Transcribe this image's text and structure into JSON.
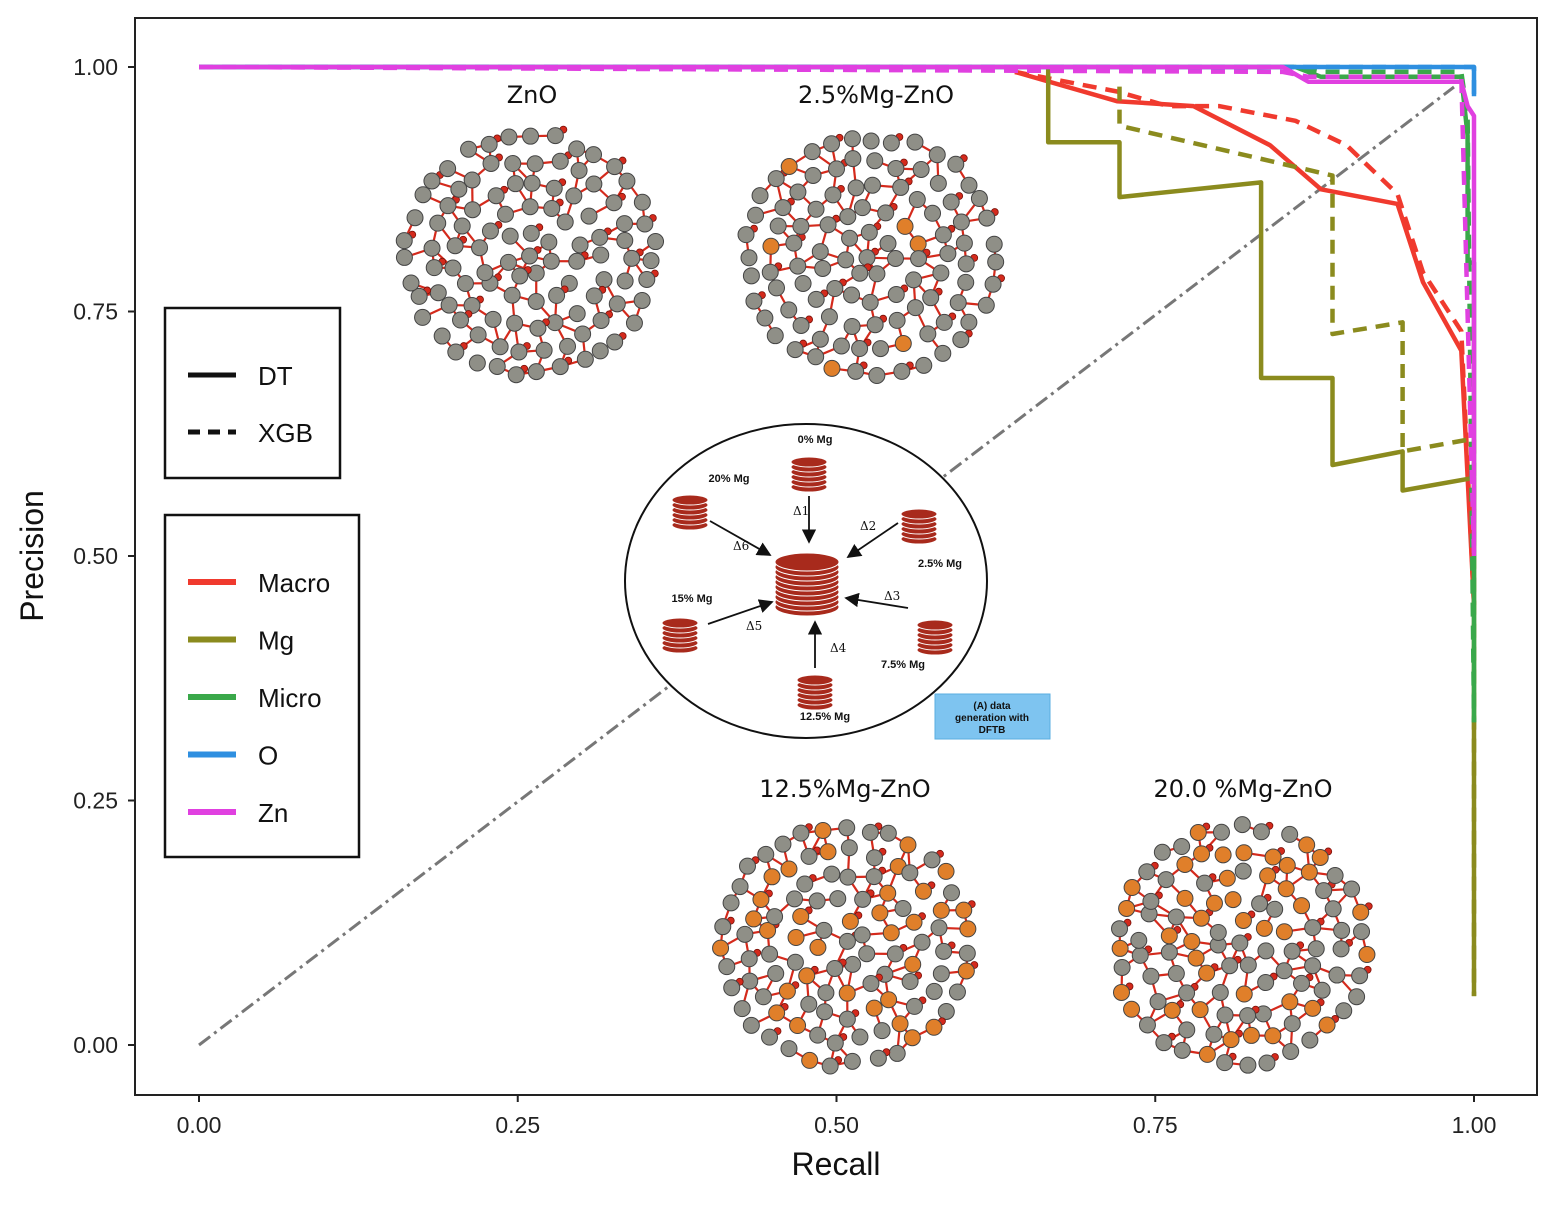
{
  "chart_data": {
    "type": "line",
    "xlabel": "Recall",
    "ylabel": "Precision",
    "xlim": [
      0,
      1
    ],
    "ylim": [
      0,
      1
    ],
    "x_ticks": [
      "0.00",
      "0.25",
      "0.50",
      "0.75",
      "1.00"
    ],
    "y_ticks": [
      "0.00",
      "0.25",
      "0.50",
      "0.75",
      "1.00"
    ],
    "grid": false,
    "legend_models": [
      {
        "label": "DT",
        "dash": "solid"
      },
      {
        "label": "XGB",
        "dash": "dashed"
      }
    ],
    "legend_classes": [
      {
        "label": "Macro",
        "color": "#f03a2e"
      },
      {
        "label": "Mg",
        "color": "#8b8b1e"
      },
      {
        "label": "Micro",
        "color": "#3aa84a"
      },
      {
        "label": "O",
        "color": "#2e8fe0"
      },
      {
        "label": "Zn",
        "color": "#e040e0"
      }
    ],
    "reference_line": {
      "x": [
        0,
        1
      ],
      "y": [
        0,
        1
      ],
      "color": "#777777",
      "style": "dash-dot"
    },
    "series": [
      {
        "model": "DT",
        "class": "Macro",
        "color": "#f03a2e",
        "x": [
          0.64,
          0.72,
          0.78,
          0.84,
          0.88,
          0.94,
          0.96,
          0.99,
          1.0
        ],
        "y": [
          0.995,
          0.965,
          0.96,
          0.92,
          0.875,
          0.86,
          0.78,
          0.71,
          0.45
        ]
      },
      {
        "model": "XGB",
        "class": "Macro",
        "color": "#f03a2e",
        "x": [
          0.64,
          0.72,
          0.76,
          0.8,
          0.86,
          0.9,
          0.94,
          0.96,
          0.99,
          1.0
        ],
        "y": [
          0.995,
          0.975,
          0.96,
          0.96,
          0.945,
          0.92,
          0.87,
          0.79,
          0.73,
          0.45
        ]
      },
      {
        "model": "DT",
        "class": "Mg",
        "color": "#8b8b1e",
        "x": [
          0.666,
          0.666,
          0.722,
          0.722,
          0.833,
          0.833,
          0.889,
          0.889,
          0.944,
          0.944,
          1.0,
          1.0
        ],
        "y": [
          1.0,
          0.923,
          0.923,
          0.867,
          0.882,
          0.682,
          0.682,
          0.593,
          0.607,
          0.567,
          0.58,
          0.05
        ]
      },
      {
        "model": "XGB",
        "class": "Mg",
        "color": "#8b8b1e",
        "x": [
          0.722,
          0.722,
          0.889,
          0.889,
          0.944,
          0.944,
          1.0,
          1.0
        ],
        "y": [
          0.98,
          0.94,
          0.889,
          0.727,
          0.739,
          0.607,
          0.62,
          0.05
        ]
      },
      {
        "model": "DT",
        "class": "Micro",
        "color": "#3aa84a",
        "x": [
          0.0,
          0.86,
          0.88,
          0.99,
          0.995,
          0.995,
          1.0,
          1.0
        ],
        "y": [
          1.0,
          1.0,
          0.99,
          0.99,
          0.93,
          0.8,
          0.8,
          0.33
        ]
      },
      {
        "model": "XGB",
        "class": "Micro",
        "color": "#3aa84a",
        "x": [
          0.0,
          0.86,
          0.88,
          0.99,
          0.995,
          1.0
        ],
        "y": [
          1.0,
          1.0,
          0.995,
          0.995,
          0.95,
          0.33
        ]
      },
      {
        "model": "DT",
        "class": "O",
        "color": "#2e8fe0",
        "x": [
          0.0,
          0.9,
          0.93,
          1.0,
          1.0
        ],
        "y": [
          1.0,
          1.0,
          1.0,
          1.0,
          0.97
        ]
      },
      {
        "model": "XGB",
        "class": "O",
        "color": "#2e8fe0",
        "x": [
          0.0,
          0.9,
          1.0,
          1.0
        ],
        "y": [
          1.0,
          1.0,
          1.0,
          0.97
        ]
      },
      {
        "model": "DT",
        "class": "Zn",
        "color": "#e040e0",
        "x": [
          0.0,
          0.85,
          0.87,
          0.99,
          0.995,
          1.0,
          1.0
        ],
        "y": [
          1.0,
          1.0,
          0.985,
          0.985,
          0.96,
          0.95,
          0.5
        ]
      },
      {
        "model": "XGB",
        "class": "Zn",
        "color": "#e040e0",
        "x": [
          0.0,
          0.85,
          0.87,
          0.99,
          1.0
        ],
        "y": [
          1.0,
          0.995,
          0.99,
          0.99,
          0.5
        ]
      }
    ]
  },
  "structures": [
    {
      "title": "ZnO",
      "dopant_fraction": 0.0
    },
    {
      "title": "2.5%Mg-ZnO",
      "dopant_fraction": 0.05
    },
    {
      "title": "12.5%Mg-ZnO",
      "dopant_fraction": 0.3
    },
    {
      "title": "20.0 %Mg-ZnO",
      "dopant_fraction": 0.4
    }
  ],
  "diagram": {
    "nodes": [
      "0% Mg",
      "2.5% Mg",
      "7.5% Mg",
      "12.5% Mg",
      "15% Mg",
      "20% Mg"
    ],
    "deltas": [
      "Δ1",
      "Δ2",
      "Δ3",
      "Δ4",
      "Δ5",
      "Δ6"
    ],
    "note": [
      "(A) data",
      "generation with",
      "DFTB"
    ],
    "note_color": "#7ec4f0",
    "stack_color": "#a82a1c"
  },
  "colors": {
    "atom_zn": "#8f8f87",
    "atom_o": "#d42a1c",
    "atom_mg": "#e07f2a"
  }
}
